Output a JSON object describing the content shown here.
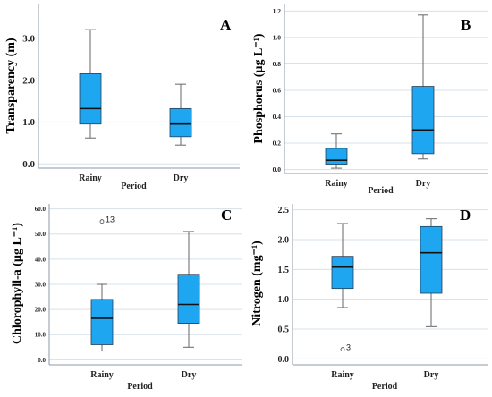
{
  "chart_data": [
    {
      "type": "box",
      "panel_label": "A",
      "xlabel": "Period",
      "ylabel": "Transparency (m)",
      "categories": [
        "Rainy",
        "Dry"
      ],
      "ylim": [
        -0.1,
        3.8
      ],
      "yticks": [
        0.0,
        1.0,
        2.0,
        3.0
      ],
      "ytick_labels": [
        "0.0",
        "1.0",
        "2.0",
        "3.0"
      ],
      "grid": true,
      "boxes": [
        {
          "category": "Rainy",
          "min": 0.62,
          "q1": 0.95,
          "median": 1.32,
          "q3": 2.15,
          "max": 3.2,
          "outliers": []
        },
        {
          "category": "Dry",
          "min": 0.45,
          "q1": 0.65,
          "median": 0.95,
          "q3": 1.32,
          "max": 1.9,
          "outliers": []
        }
      ]
    },
    {
      "type": "box",
      "panel_label": "B",
      "xlabel": "Period",
      "ylabel": "Phosphorus (µg L⁻¹)",
      "categories": [
        "Rainy",
        "Dry"
      ],
      "ylim": [
        -0.03,
        1.25
      ],
      "yticks": [
        0.0,
        0.2,
        0.4,
        0.6,
        0.8,
        1.0,
        1.2
      ],
      "ytick_labels": [
        "0.0",
        "0.2",
        "0.4",
        "0.6",
        "0.8",
        "1.0",
        "1.2"
      ],
      "grid": true,
      "boxes": [
        {
          "category": "Rainy",
          "min": 0.01,
          "q1": 0.04,
          "median": 0.07,
          "q3": 0.16,
          "max": 0.27,
          "outliers": []
        },
        {
          "category": "Dry",
          "min": 0.08,
          "q1": 0.12,
          "median": 0.3,
          "q3": 0.63,
          "max": 1.17,
          "outliers": []
        }
      ]
    },
    {
      "type": "box",
      "panel_label": "C",
      "xlabel": "Period",
      "ylabel": "Chlorophyll-a (µg L⁻¹)",
      "categories": [
        "Rainy",
        "Dry"
      ],
      "ylim": [
        -2,
        62
      ],
      "yticks": [
        0,
        10,
        20,
        30,
        40,
        50,
        60
      ],
      "ytick_labels": [
        "0.0",
        "10.0",
        "20.0",
        "30.0",
        "40.0",
        "50.0",
        "60.0"
      ],
      "grid": true,
      "boxes": [
        {
          "category": "Rainy",
          "min": 3.5,
          "q1": 6.0,
          "median": 16.5,
          "q3": 24.0,
          "max": 30.0,
          "outliers": [
            {
              "value": 55.0,
              "label": "13"
            }
          ]
        },
        {
          "category": "Dry",
          "min": 5.0,
          "q1": 14.5,
          "median": 22.0,
          "q3": 34.0,
          "max": 51.0,
          "outliers": []
        }
      ]
    },
    {
      "type": "box",
      "panel_label": "D",
      "xlabel": "Period",
      "ylabel": "Nitrogen (mg⁻¹)",
      "categories": [
        "Rainy",
        "Dry"
      ],
      "ylim": [
        -0.1,
        2.6
      ],
      "yticks": [
        0.0,
        0.5,
        1.0,
        1.5,
        2.0,
        2.5
      ],
      "ytick_labels": [
        "0.0",
        "0.5",
        "1.0",
        "1.5",
        "2.0",
        "2.5"
      ],
      "grid": true,
      "boxes": [
        {
          "category": "Rainy",
          "min": 0.86,
          "q1": 1.18,
          "median": 1.54,
          "q3": 1.72,
          "max": 2.27,
          "outliers": [
            {
              "value": 0.16,
              "label": "3"
            }
          ]
        },
        {
          "category": "Dry",
          "min": 0.54,
          "q1": 1.1,
          "median": 1.78,
          "q3": 2.22,
          "max": 2.35,
          "outliers": []
        }
      ]
    }
  ],
  "colors": {
    "box_fill": "#1ea7f0",
    "box_edge": "#2a3d55",
    "whisker": "#666666",
    "grid": "#d6e1ea",
    "axis": "#8e9aa6"
  }
}
